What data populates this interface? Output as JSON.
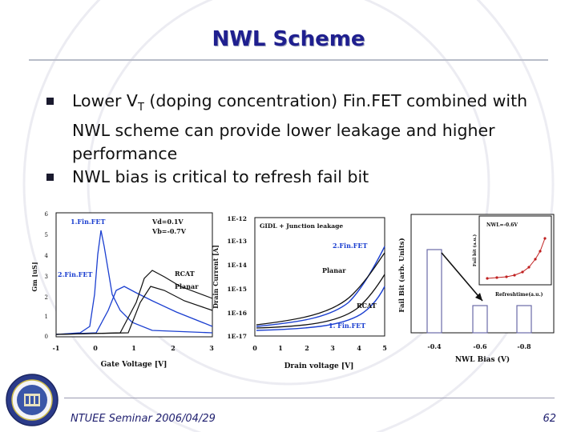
{
  "slide": {
    "title": "NWL Scheme",
    "bullets": [
      {
        "lead": "Lower V",
        "sub": "T",
        "rest": " (doping concentration) Fin.FET combined with NWL scheme can provide lower leakage and higher performance"
      },
      {
        "lead": "NWL bias is critical to refresh fail bit",
        "sub": "",
        "rest": ""
      }
    ],
    "footer_left": "NTUEE Seminar 2006/04/29",
    "page_number": "62"
  },
  "figures": {
    "fig1": {
      "xlabel": "Gate Voltage [V]",
      "ylabel": "Gm [uS]",
      "xticks": [
        "-1",
        "0",
        "1",
        "2",
        "3"
      ],
      "yticks": [
        "0",
        "1",
        "2",
        "3",
        "4",
        "5",
        "6"
      ],
      "labels": {
        "finfet1": "1.Fin.FET",
        "finfet2": "2.Fin.FET",
        "bias1": "Vd=0.1V",
        "bias2": "Vb=-0.7V",
        "rcat": "RCAT",
        "planar": "Planar"
      }
    },
    "fig2": {
      "xlabel": "Drain voltage [V]",
      "ylabel": "Drain Current [A]",
      "xticks": [
        "0",
        "1",
        "2",
        "3",
        "4",
        "5"
      ],
      "yticks": [
        "1E-12",
        "1E-13",
        "1E-14",
        "1E-15",
        "1E-16",
        "1E-17"
      ],
      "labels": {
        "gidl": "GIDL + Junction leakage",
        "finfet2": "2.Fin.FET",
        "planar": "Planar",
        "rcat": "RCAT",
        "finfet1": "1. Fin.FET"
      }
    },
    "fig3": {
      "xlabel": "NWL Bias (V)",
      "ylabel": "Fail Bit (arb. Units)",
      "xticks": [
        "-0.4",
        "-0.6",
        "-0.8"
      ],
      "inset": {
        "label": "NWL=-0.6V",
        "xlabel": "Refreshtime(a.u.)",
        "ylabel": "Fail bit (a.u.)"
      }
    }
  },
  "colors": {
    "title": "#1f1f8f",
    "blue": "#1b3fd0",
    "black": "#111111"
  }
}
